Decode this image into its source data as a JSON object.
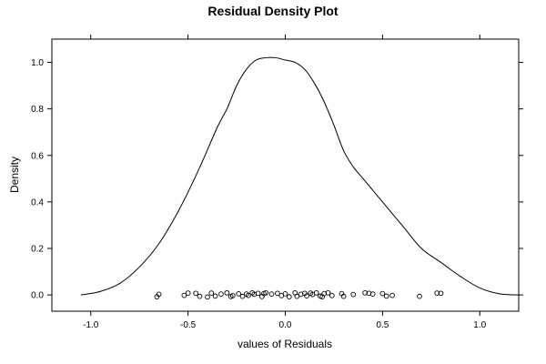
{
  "chart_data": {
    "type": "line",
    "title": "Residual Density Plot",
    "xlabel": "values of Residuals",
    "ylabel": "Density",
    "xlim": [
      -1.2,
      1.2
    ],
    "ylim": [
      -0.07,
      1.1
    ],
    "x_ticks": [
      -1.0,
      -0.5,
      0.0,
      0.5,
      1.0
    ],
    "x_tick_labels": [
      "-1.0",
      "-0.5",
      "0.0",
      "0.5",
      "1.0"
    ],
    "y_ticks": [
      0.0,
      0.2,
      0.4,
      0.6,
      0.8,
      1.0
    ],
    "y_tick_labels": [
      "0.0",
      "0.2",
      "0.4",
      "0.6",
      "0.8",
      "1.0"
    ],
    "grid": false,
    "density_curve": [
      {
        "x": -1.05,
        "y": 0.0
      },
      {
        "x": -0.95,
        "y": 0.015
      },
      {
        "x": -0.85,
        "y": 0.05
      },
      {
        "x": -0.75,
        "y": 0.12
      },
      {
        "x": -0.65,
        "y": 0.22
      },
      {
        "x": -0.55,
        "y": 0.36
      },
      {
        "x": -0.45,
        "y": 0.53
      },
      {
        "x": -0.35,
        "y": 0.72
      },
      {
        "x": -0.3,
        "y": 0.8
      },
      {
        "x": -0.25,
        "y": 0.9
      },
      {
        "x": -0.2,
        "y": 0.97
      },
      {
        "x": -0.15,
        "y": 1.01
      },
      {
        "x": -0.1,
        "y": 1.02
      },
      {
        "x": -0.05,
        "y": 1.02
      },
      {
        "x": 0.0,
        "y": 1.01
      },
      {
        "x": 0.05,
        "y": 1.0
      },
      {
        "x": 0.1,
        "y": 0.97
      },
      {
        "x": 0.15,
        "y": 0.91
      },
      {
        "x": 0.2,
        "y": 0.83
      },
      {
        "x": 0.25,
        "y": 0.73
      },
      {
        "x": 0.3,
        "y": 0.62
      },
      {
        "x": 0.35,
        "y": 0.55
      },
      {
        "x": 0.4,
        "y": 0.5
      },
      {
        "x": 0.5,
        "y": 0.4
      },
      {
        "x": 0.6,
        "y": 0.3
      },
      {
        "x": 0.7,
        "y": 0.2
      },
      {
        "x": 0.8,
        "y": 0.14
      },
      {
        "x": 0.9,
        "y": 0.08
      },
      {
        "x": 1.0,
        "y": 0.03
      },
      {
        "x": 1.1,
        "y": 0.005
      },
      {
        "x": 1.2,
        "y": 0.0
      }
    ],
    "rug_points": [
      {
        "x": -0.66,
        "y": -0.008
      },
      {
        "x": -0.65,
        "y": 0.003
      },
      {
        "x": -0.52,
        "y": -0.002
      },
      {
        "x": -0.5,
        "y": 0.008
      },
      {
        "x": -0.46,
        "y": 0.007
      },
      {
        "x": -0.44,
        "y": -0.006
      },
      {
        "x": -0.4,
        "y": -0.009
      },
      {
        "x": -0.38,
        "y": 0.008
      },
      {
        "x": -0.36,
        "y": -0.005
      },
      {
        "x": -0.33,
        "y": 0.004
      },
      {
        "x": -0.3,
        "y": 0.009
      },
      {
        "x": -0.28,
        "y": -0.007
      },
      {
        "x": -0.27,
        "y": -0.003
      },
      {
        "x": -0.24,
        "y": 0.005
      },
      {
        "x": -0.22,
        "y": -0.006
      },
      {
        "x": -0.2,
        "y": 0.004
      },
      {
        "x": -0.19,
        "y": -0.002
      },
      {
        "x": -0.17,
        "y": 0.009
      },
      {
        "x": -0.16,
        "y": 0.003
      },
      {
        "x": -0.14,
        "y": 0.007
      },
      {
        "x": -0.12,
        "y": -0.007
      },
      {
        "x": -0.11,
        "y": 0.006
      },
      {
        "x": -0.1,
        "y": 0.009
      },
      {
        "x": -0.07,
        "y": 0.004
      },
      {
        "x": -0.04,
        "y": 0.007
      },
      {
        "x": -0.02,
        "y": -0.003
      },
      {
        "x": 0.0,
        "y": 0.005
      },
      {
        "x": 0.02,
        "y": -0.008
      },
      {
        "x": 0.05,
        "y": 0.009
      },
      {
        "x": 0.06,
        "y": -0.006
      },
      {
        "x": 0.08,
        "y": 0.003
      },
      {
        "x": 0.1,
        "y": 0.007
      },
      {
        "x": 0.11,
        "y": -0.004
      },
      {
        "x": 0.13,
        "y": 0.008
      },
      {
        "x": 0.14,
        "y": 0.002
      },
      {
        "x": 0.16,
        "y": 0.009
      },
      {
        "x": 0.18,
        "y": -0.005
      },
      {
        "x": 0.19,
        "y": -0.008
      },
      {
        "x": 0.2,
        "y": 0.006
      },
      {
        "x": 0.22,
        "y": 0.009
      },
      {
        "x": 0.24,
        "y": -0.003
      },
      {
        "x": 0.29,
        "y": 0.006
      },
      {
        "x": 0.3,
        "y": -0.006
      },
      {
        "x": 0.35,
        "y": 0.002
      },
      {
        "x": 0.41,
        "y": 0.009
      },
      {
        "x": 0.43,
        "y": 0.007
      },
      {
        "x": 0.45,
        "y": 0.004
      },
      {
        "x": 0.5,
        "y": 0.006
      },
      {
        "x": 0.52,
        "y": -0.005
      },
      {
        "x": 0.55,
        "y": -0.002
      },
      {
        "x": 0.69,
        "y": -0.006
      },
      {
        "x": 0.78,
        "y": 0.008
      },
      {
        "x": 0.8,
        "y": 0.007
      }
    ]
  }
}
